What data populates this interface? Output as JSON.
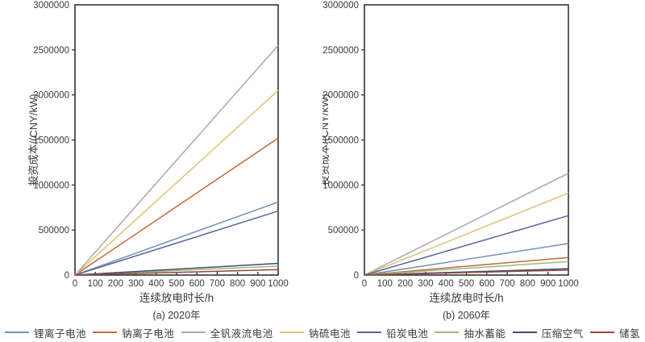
{
  "figure": {
    "xlabel": "连续放电时长/h",
    "ylabel": "投资成本/(CNY/kW)",
    "axis_color": "#333333",
    "text_color": "#3a3a3a",
    "legend": [
      {
        "label": "锂离子电池",
        "color": "#7492b6"
      },
      {
        "label": "钠离子电池",
        "color": "#c3693e"
      },
      {
        "label": "全钒液流电池",
        "color": "#a9a9a9"
      },
      {
        "label": "钠硫电池",
        "color": "#e2c078"
      },
      {
        "label": "铅炭电池",
        "color": "#5d6399"
      },
      {
        "label": "抽水蓄能",
        "color": "#9cba7d"
      },
      {
        "label": "压缩空气",
        "color": "#3f4a6e"
      },
      {
        "label": "储氢",
        "color": "#96483a"
      }
    ]
  },
  "chart_data": [
    {
      "type": "line",
      "caption": "(a) 2020年",
      "xlabel": "连续放电时长/h",
      "ylabel": "投资成本/(CNY/kW)",
      "xlim": [
        0,
        1000
      ],
      "ylim": [
        0,
        3000000
      ],
      "x_ticks": [
        0,
        100,
        200,
        300,
        400,
        500,
        600,
        700,
        800,
        900,
        1000
      ],
      "y_ticks": [
        0,
        500000,
        1000000,
        1500000,
        2000000,
        2500000,
        3000000
      ],
      "grid": false,
      "legend_position": "bottom-shared",
      "x": [
        0,
        1000
      ],
      "series": [
        {
          "name": "锂离子电池",
          "color": "#7492b6",
          "values": [
            0,
            810000
          ]
        },
        {
          "name": "钠离子电池",
          "color": "#c3693e",
          "values": [
            0,
            1520000
          ]
        },
        {
          "name": "全钒液流电池",
          "color": "#a9a9a9",
          "values": [
            0,
            2550000
          ]
        },
        {
          "name": "钠硫电池",
          "color": "#e2c078",
          "values": [
            0,
            2050000
          ]
        },
        {
          "name": "铅炭电池",
          "color": "#5d6399",
          "values": [
            0,
            710000
          ]
        },
        {
          "name": "抽水蓄能",
          "color": "#9cba7d",
          "values": [
            0,
            100000
          ]
        },
        {
          "name": "压缩空气",
          "color": "#3f4a6e",
          "values": [
            0,
            130000
          ]
        },
        {
          "name": "储氢",
          "color": "#96483a",
          "values": [
            0,
            60000
          ]
        }
      ]
    },
    {
      "type": "line",
      "caption": "(b) 2060年",
      "xlabel": "连续放电时长/h",
      "ylabel": "投资成本/(CNY/kW)",
      "xlim": [
        0,
        1000
      ],
      "ylim": [
        0,
        3000000
      ],
      "x_ticks": [
        0,
        100,
        200,
        300,
        400,
        500,
        600,
        700,
        800,
        900,
        1000
      ],
      "y_ticks": [
        0,
        500000,
        1000000,
        1500000,
        2000000,
        2500000,
        3000000
      ],
      "grid": false,
      "legend_position": "bottom-shared",
      "x": [
        0,
        1000
      ],
      "series": [
        {
          "name": "锂离子电池",
          "color": "#7492b6",
          "values": [
            0,
            350000
          ]
        },
        {
          "name": "钠离子电池",
          "color": "#c3693e",
          "values": [
            0,
            195000
          ]
        },
        {
          "name": "全钒液流电池",
          "color": "#a9a9a9",
          "values": [
            0,
            1130000
          ]
        },
        {
          "name": "钠硫电池",
          "color": "#e2c078",
          "values": [
            0,
            910000
          ]
        },
        {
          "name": "铅炭电池",
          "color": "#5d6399",
          "values": [
            0,
            660000
          ]
        },
        {
          "name": "抽水蓄能",
          "color": "#9cba7d",
          "values": [
            0,
            150000
          ]
        },
        {
          "name": "压缩空气",
          "color": "#3f4a6e",
          "values": [
            0,
            70000
          ]
        },
        {
          "name": "储氢",
          "color": "#96483a",
          "values": [
            0,
            55000
          ]
        }
      ]
    }
  ]
}
